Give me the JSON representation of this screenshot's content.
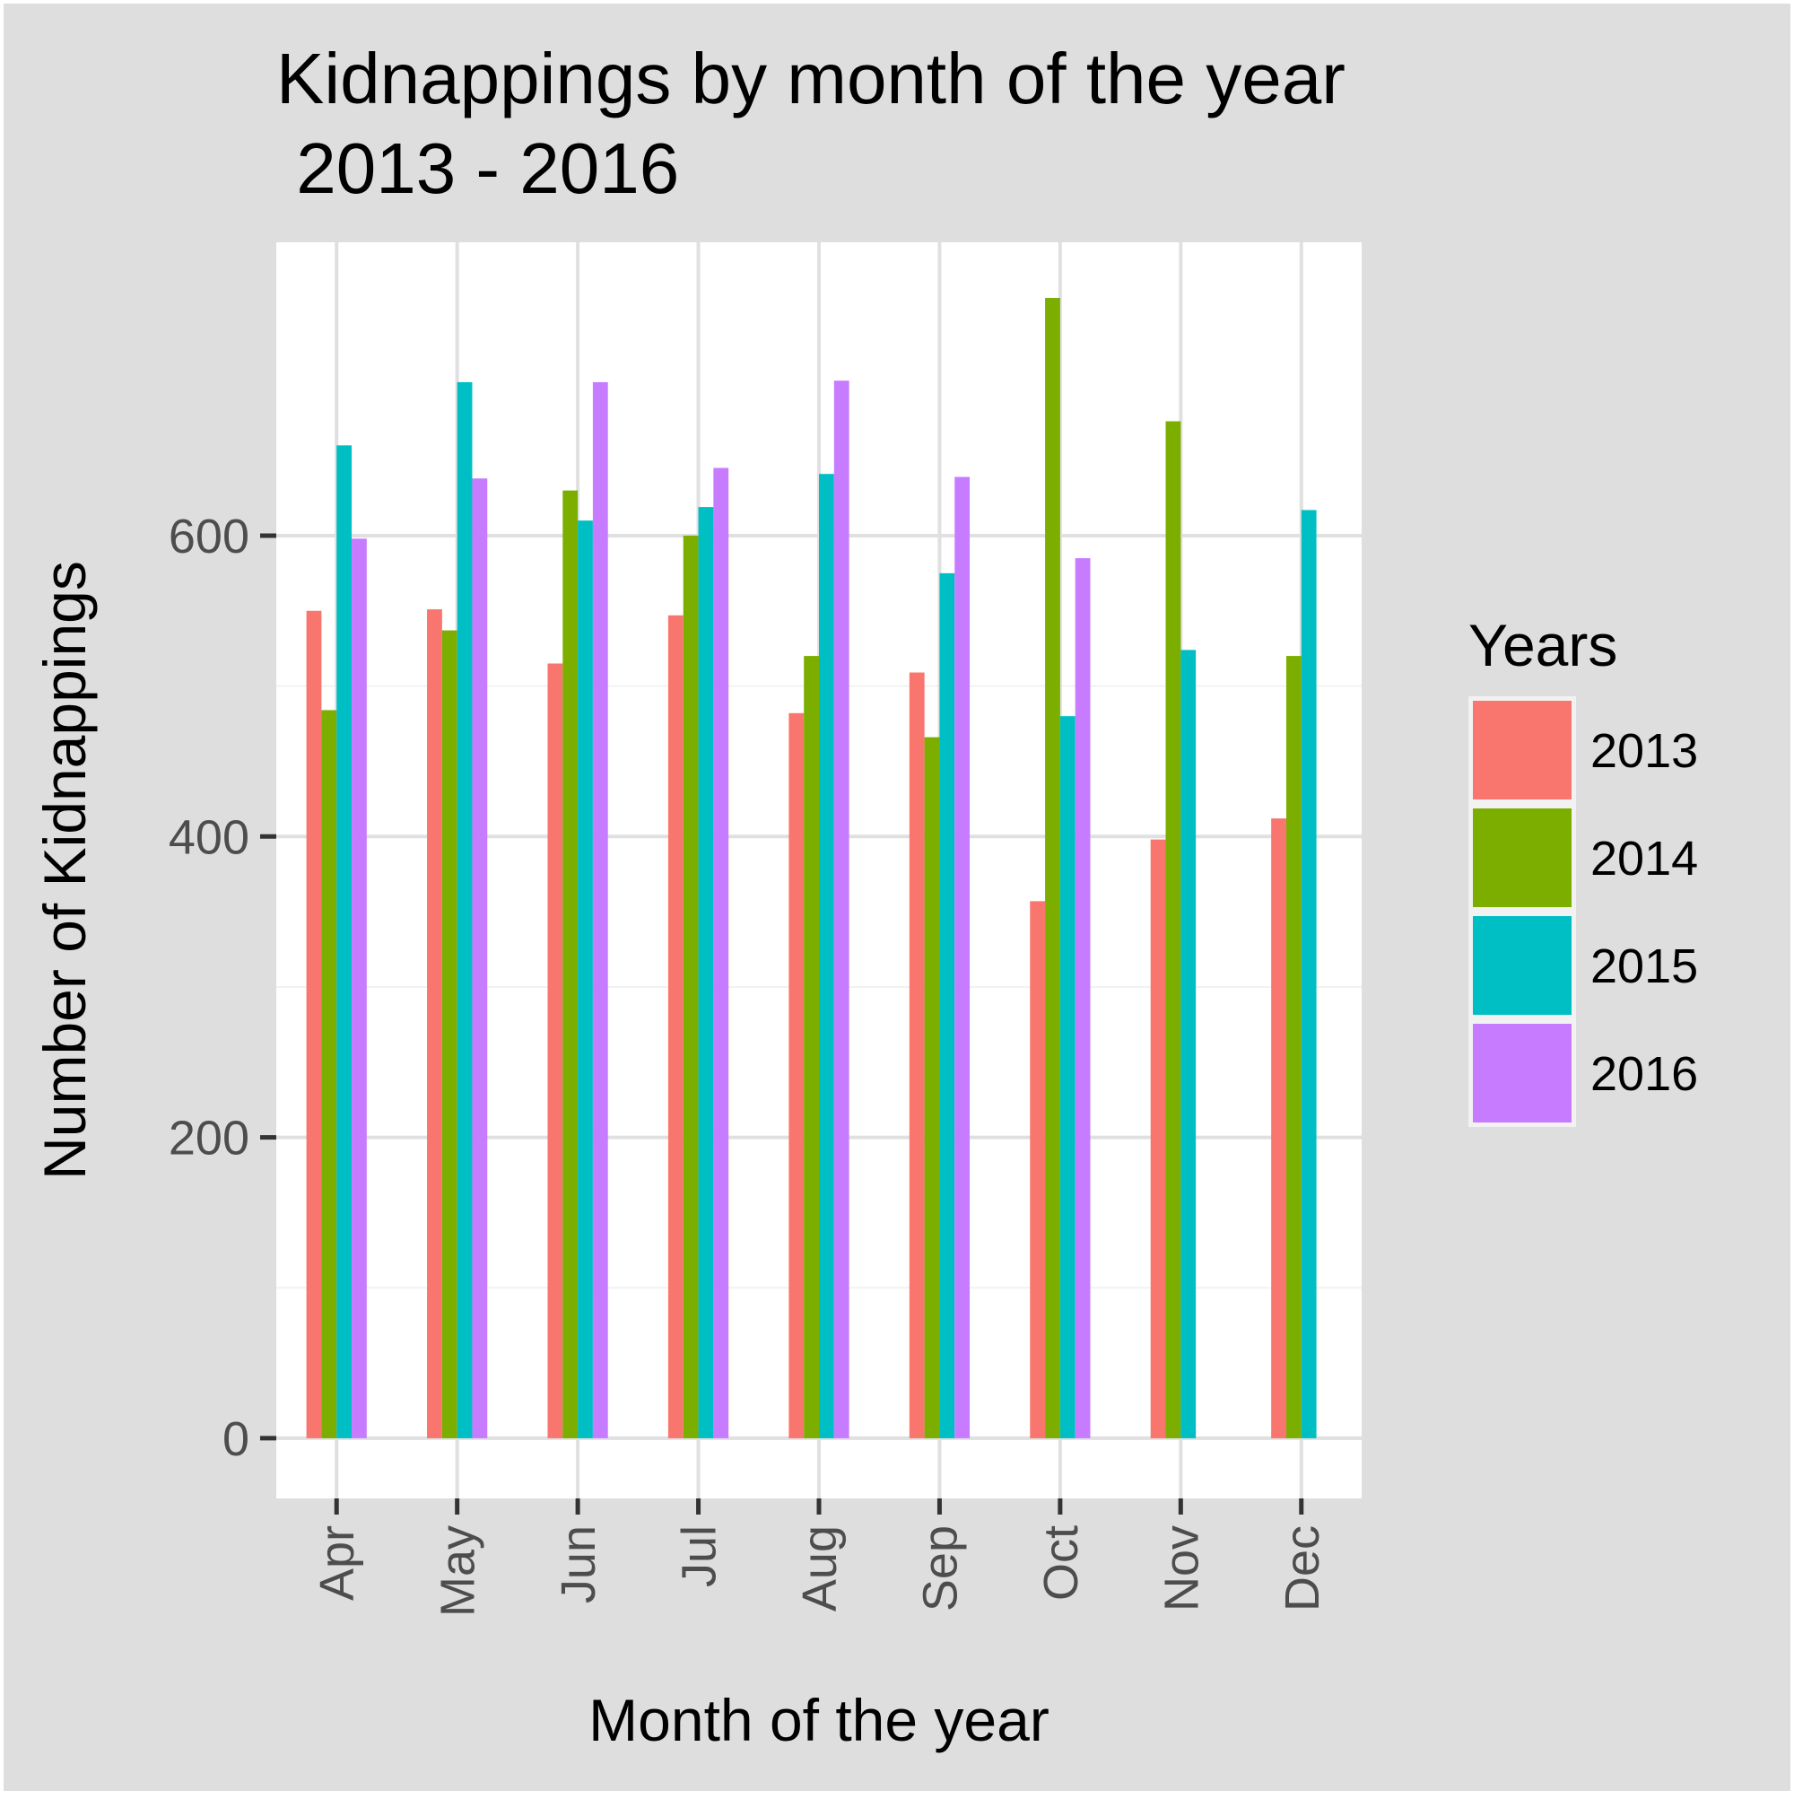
{
  "chart_data": {
    "type": "bar",
    "title_lines": [
      "Kidnappings by month of the year",
      " 2013 - 2016"
    ],
    "xlabel": "Month of the year",
    "ylabel": "Number of Kidnappings",
    "ylim": [
      -40,
      795
    ],
    "yticks": [
      0,
      200,
      400,
      600
    ],
    "categories": [
      "Apr",
      "May",
      "Jun",
      "Jul",
      "Aug",
      "Sep",
      "Oct",
      "Nov",
      "Dec"
    ],
    "legend_title": "Years",
    "legend_position": "right",
    "series": [
      {
        "name": "2013",
        "color": "#F8766D",
        "values": [
          550,
          551,
          515,
          547,
          482,
          509,
          357,
          398,
          412
        ]
      },
      {
        "name": "2014",
        "color": "#7CAE00",
        "values": [
          484,
          537,
          630,
          600,
          520,
          466,
          758,
          676,
          520
        ]
      },
      {
        "name": "2015",
        "color": "#00BFC4",
        "values": [
          660,
          702,
          610,
          619,
          641,
          575,
          480,
          524,
          617
        ]
      },
      {
        "name": "2016",
        "color": "#C77CFF",
        "values": [
          598,
          638,
          702,
          645,
          703,
          639,
          585,
          null,
          null
        ]
      }
    ]
  }
}
